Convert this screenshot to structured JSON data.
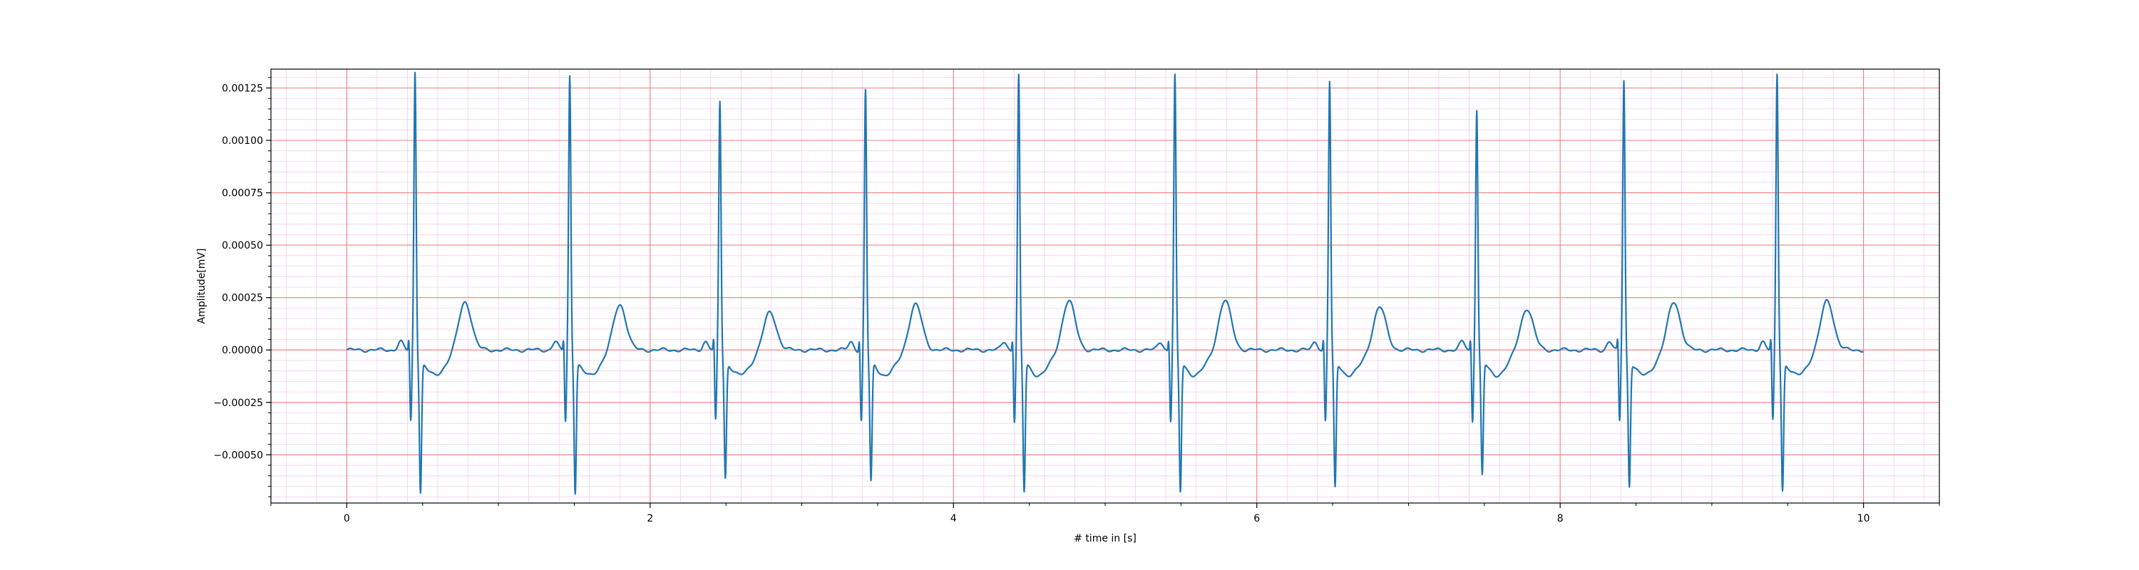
{
  "chart_data": {
    "type": "line",
    "title": "",
    "xlabel": "# time in [s]",
    "ylabel": "Amplitude[mV]",
    "xlim": [
      -0.5,
      10.5
    ],
    "ylim": [
      -0.00073,
      0.00134
    ],
    "x_ticks": [
      0,
      2,
      4,
      6,
      8,
      10
    ],
    "x_tick_labels": [
      "0",
      "2",
      "4",
      "6",
      "8",
      "10"
    ],
    "y_ticks": [
      -0.0005,
      -0.00025,
      0.0,
      0.00025,
      0.0005,
      0.00075,
      0.001,
      0.00125
    ],
    "y_tick_labels": [
      "−0.00050",
      "−0.00025",
      "0.00000",
      "0.00025",
      "0.00050",
      "0.00075",
      "0.00100",
      "0.00125"
    ],
    "grid": true,
    "major_grid_color": "#f08080",
    "minor_grid_color": "#f2cdee",
    "legend": "none",
    "series": [
      {
        "color": "#1f77b4",
        "sample_rate_hz": 500,
        "x_start": 0,
        "x_end": 10,
        "beat_times": [
          0.45,
          1.47,
          2.46,
          3.42,
          4.43,
          5.46,
          6.48,
          7.45,
          8.42,
          9.43
        ],
        "r_peak_amplitudes": [
          0.00125,
          0.00123,
          0.00111,
          0.00116,
          0.00123,
          0.00123,
          0.0012,
          0.00107,
          0.00121,
          0.00124
        ],
        "s_trough_amplitudes": [
          -0.00063,
          -0.00063,
          -0.00056,
          -0.00058,
          -0.00063,
          -0.00063,
          -0.00061,
          -0.00055,
          -0.0006,
          -0.00062
        ],
        "t_wave_amplitudes": [
          0.000185,
          0.000175,
          0.000145,
          0.000175,
          0.00019,
          0.00019,
          0.000165,
          0.00016,
          0.000185,
          0.00019
        ]
      }
    ]
  }
}
